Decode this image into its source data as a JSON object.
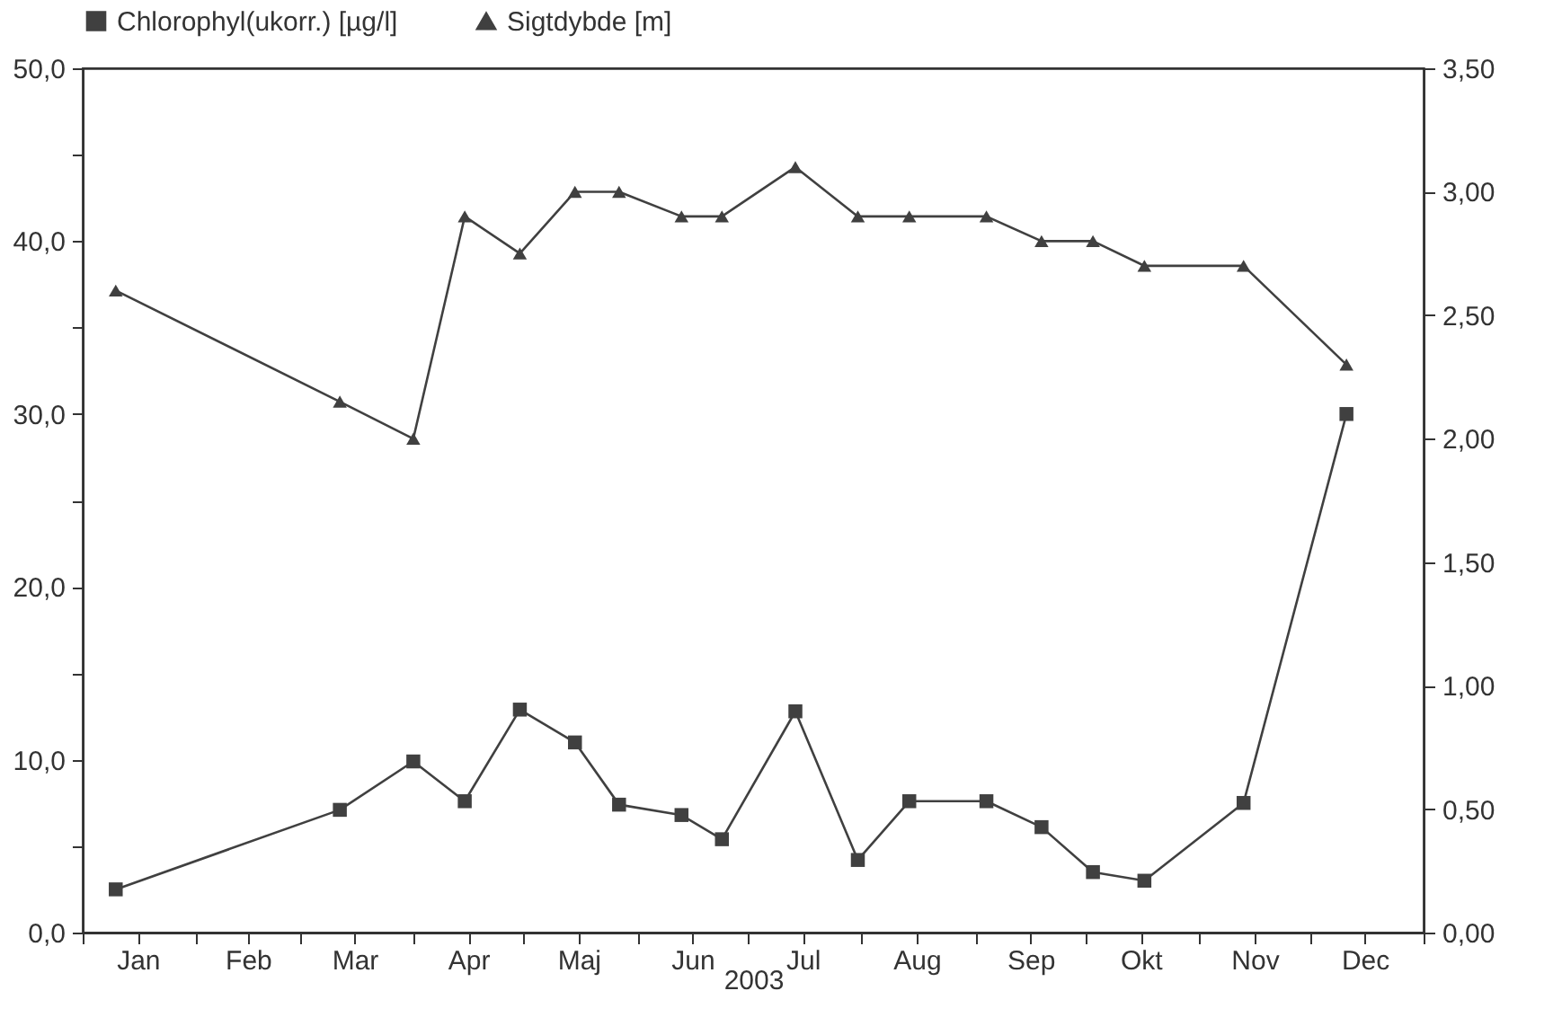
{
  "chart_data": {
    "type": "line",
    "xlabel": "2003",
    "legend": "top",
    "grid": false,
    "line_style": "solid",
    "x": [
      "2003-01-10",
      "2003-03-12",
      "2003-04-01",
      "2003-04-15",
      "2003-04-30",
      "2003-05-15",
      "2003-05-27",
      "2003-06-13",
      "2003-06-24",
      "2003-07-14",
      "2003-07-31",
      "2003-08-14",
      "2003-09-04",
      "2003-09-19",
      "2003-10-03",
      "2003-10-17",
      "2003-11-13",
      "2003-12-11"
    ],
    "xlim": [
      "2003-01-01",
      "2004-01-01"
    ],
    "xticks": [
      {
        "value": "2003-01-01",
        "label": null
      },
      {
        "value": "2003-01-16",
        "label": "Jan"
      },
      {
        "value": "2003-02-01",
        "label": null
      },
      {
        "value": "2003-02-15",
        "label": "Feb"
      },
      {
        "value": "2003-03-01",
        "label": null
      },
      {
        "value": "2003-03-16",
        "label": "Mar"
      },
      {
        "value": "2003-04-01",
        "label": null
      },
      {
        "value": "2003-04-16",
        "label": "Apr"
      },
      {
        "value": "2003-05-01",
        "label": null
      },
      {
        "value": "2003-05-16",
        "label": "Maj"
      },
      {
        "value": "2003-06-01",
        "label": null
      },
      {
        "value": "2003-06-16",
        "label": "Jun"
      },
      {
        "value": "2003-07-01",
        "label": null
      },
      {
        "value": "2003-07-16",
        "label": "Jul"
      },
      {
        "value": "2003-08-01",
        "label": null
      },
      {
        "value": "2003-08-16",
        "label": "Aug"
      },
      {
        "value": "2003-09-01",
        "label": null
      },
      {
        "value": "2003-09-16",
        "label": "Sep"
      },
      {
        "value": "2003-10-01",
        "label": null
      },
      {
        "value": "2003-10-16",
        "label": "Okt"
      },
      {
        "value": "2003-11-01",
        "label": null
      },
      {
        "value": "2003-11-16",
        "label": "Nov"
      },
      {
        "value": "2003-12-01",
        "label": null
      },
      {
        "value": "2003-12-16",
        "label": "Dec"
      },
      {
        "value": "2004-01-01",
        "label": null
      }
    ],
    "ylim": [
      0,
      50
    ],
    "yticks": [
      {
        "value": 0,
        "label": "0,0"
      },
      {
        "value": 5,
        "label": null
      },
      {
        "value": 10,
        "label": "10,0"
      },
      {
        "value": 15,
        "label": null
      },
      {
        "value": 20,
        "label": "20,0"
      },
      {
        "value": 25,
        "label": null
      },
      {
        "value": 30,
        "label": "30,0"
      },
      {
        "value": 35,
        "label": null
      },
      {
        "value": 40,
        "label": "40,0"
      },
      {
        "value": 45,
        "label": null
      },
      {
        "value": 50,
        "label": "50,0"
      }
    ],
    "y2lim": [
      0,
      3.5
    ],
    "y2ticks": [
      {
        "value": 0,
        "label": "0,00"
      },
      {
        "value": 0.5,
        "label": "0,50"
      },
      {
        "value": 1,
        "label": "1,00"
      },
      {
        "value": 1.5,
        "label": "1,50"
      },
      {
        "value": 2,
        "label": "2,00"
      },
      {
        "value": 2.5,
        "label": "2,50"
      },
      {
        "value": 3,
        "label": "3,00"
      },
      {
        "value": 3.5,
        "label": "3,50"
      }
    ],
    "series": [
      {
        "name": "Chlorophyl(ukorr.) [µg/l]",
        "color": "#404040",
        "marker": "square",
        "values": [
          2.5,
          7.1,
          9.9,
          7.6,
          12.9,
          11.0,
          7.4,
          6.8,
          5.4,
          12.8,
          4.2,
          7.6,
          7.6,
          6.1,
          3.5,
          3.0,
          7.5,
          30.0
        ]
      },
      {
        "name": "Sigtdybde [m]",
        "color": "#404040",
        "marker": "triangle",
        "axis": "y2",
        "values": [
          2.6,
          2.15,
          2.0,
          2.9,
          2.75,
          3.0,
          3.0,
          2.9,
          2.9,
          3.1,
          2.9,
          2.9,
          2.9,
          2.8,
          2.8,
          2.7,
          2.7,
          2.3
        ]
      }
    ]
  }
}
